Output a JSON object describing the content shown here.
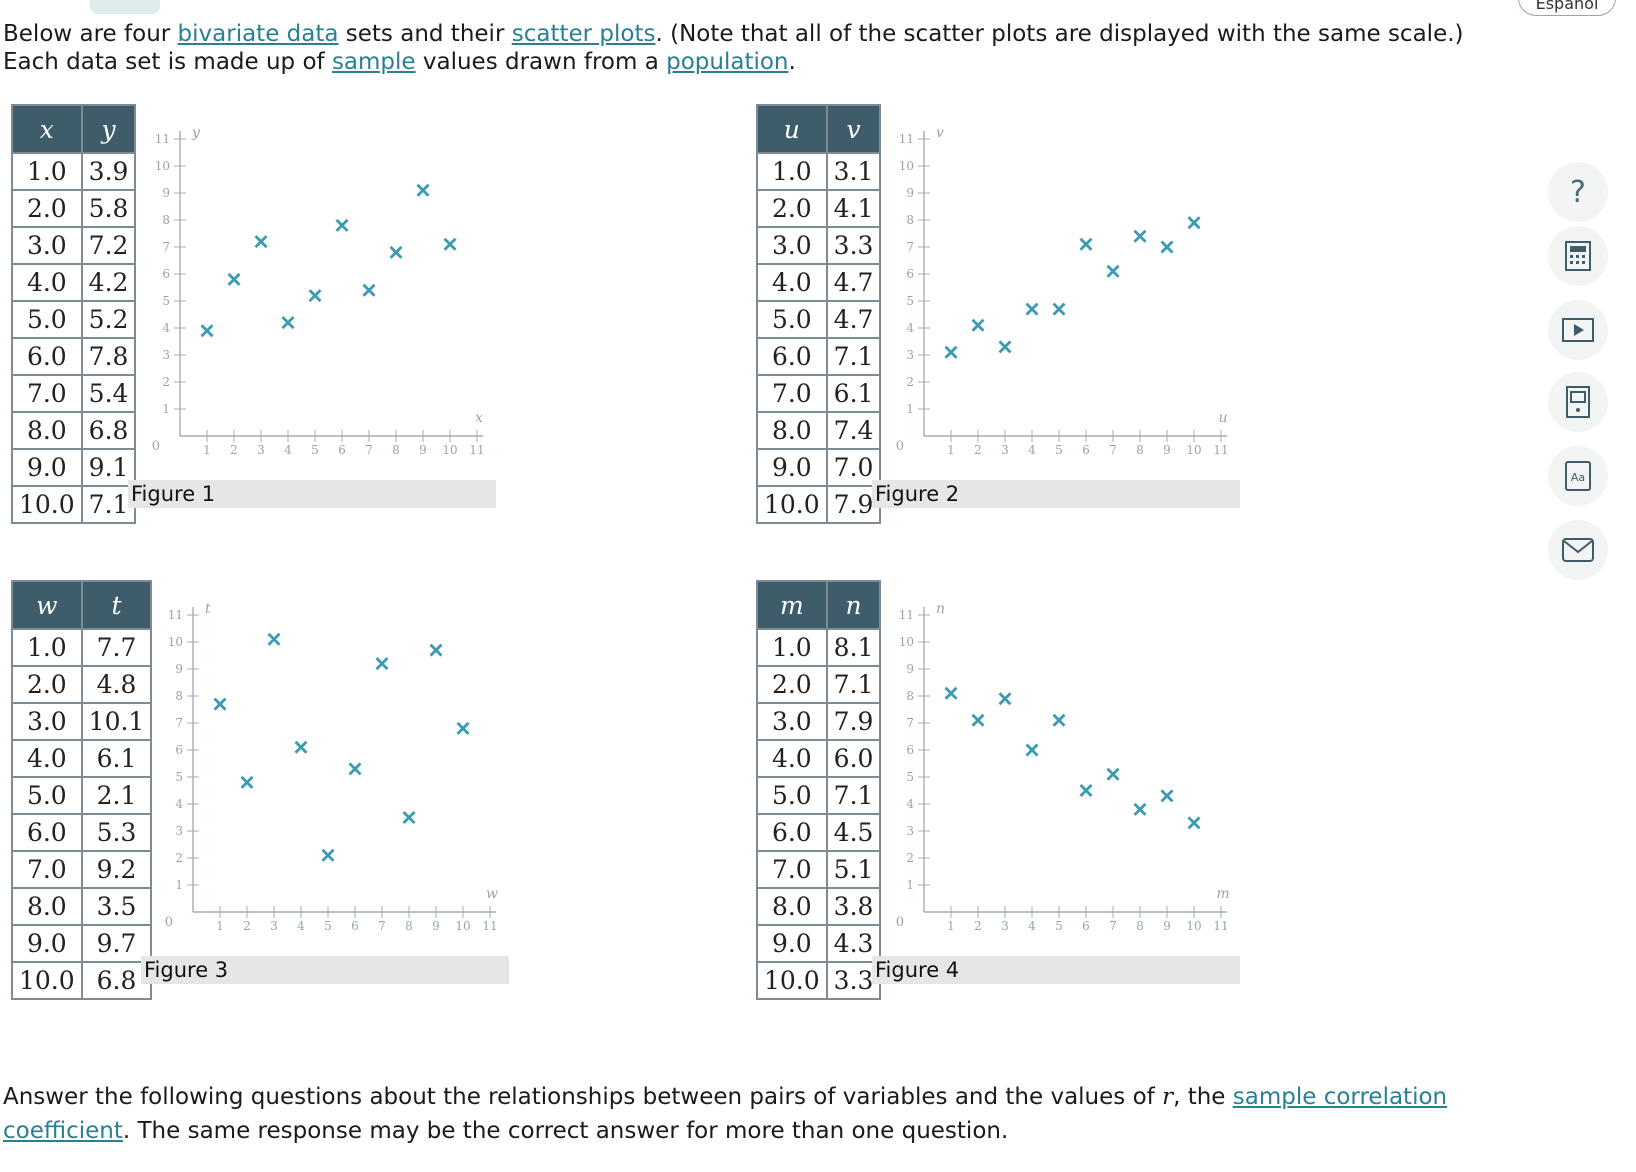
{
  "header": {
    "language_button": "Español"
  },
  "intro": {
    "t1": "Below are four ",
    "link1": "bivariate data",
    "t2": " sets and their ",
    "link2": "scatter plots",
    "t3": ". (Note that all of the scatter plots are displayed with the same scale.) Each data set is made up of ",
    "link3": "sample",
    "t4": " values drawn from a ",
    "link4": "population",
    "t5": "."
  },
  "question": {
    "t1": "Answer the following questions about the relationships between pairs of variables and the values of ",
    "var": "r",
    "t2": ", the ",
    "link1": "sample correlation coefficient",
    "t3": ". The same response may be the correct answer for more than one question."
  },
  "marker_color": "#3b9bb0",
  "datasets": [
    {
      "caption": "Figure 1",
      "col1": "x",
      "col2": "y",
      "rows": [
        [
          "1.0",
          "3.9"
        ],
        [
          "2.0",
          "5.8"
        ],
        [
          "3.0",
          "7.2"
        ],
        [
          "4.0",
          "4.2"
        ],
        [
          "5.0",
          "5.2"
        ],
        [
          "6.0",
          "7.8"
        ],
        [
          "7.0",
          "5.4"
        ],
        [
          "8.0",
          "6.8"
        ],
        [
          "9.0",
          "9.1"
        ],
        [
          "10.0",
          "7.1"
        ]
      ]
    },
    {
      "caption": "Figure 2",
      "col1": "u",
      "col2": "v",
      "rows": [
        [
          "1.0",
          "3.1"
        ],
        [
          "2.0",
          "4.1"
        ],
        [
          "3.0",
          "3.3"
        ],
        [
          "4.0",
          "4.7"
        ],
        [
          "5.0",
          "4.7"
        ],
        [
          "6.0",
          "7.1"
        ],
        [
          "7.0",
          "6.1"
        ],
        [
          "8.0",
          "7.4"
        ],
        [
          "9.0",
          "7.0"
        ],
        [
          "10.0",
          "7.9"
        ]
      ]
    },
    {
      "caption": "Figure 3",
      "col1": "w",
      "col2": "t",
      "rows": [
        [
          "1.0",
          "7.7"
        ],
        [
          "2.0",
          "4.8"
        ],
        [
          "3.0",
          "10.1"
        ],
        [
          "4.0",
          "6.1"
        ],
        [
          "5.0",
          "2.1"
        ],
        [
          "6.0",
          "5.3"
        ],
        [
          "7.0",
          "9.2"
        ],
        [
          "8.0",
          "3.5"
        ],
        [
          "9.0",
          "9.7"
        ],
        [
          "10.0",
          "6.8"
        ]
      ]
    },
    {
      "caption": "Figure 4",
      "col1": "m",
      "col2": "n",
      "rows": [
        [
          "1.0",
          "8.1"
        ],
        [
          "2.0",
          "7.1"
        ],
        [
          "3.0",
          "7.9"
        ],
        [
          "4.0",
          "6.0"
        ],
        [
          "5.0",
          "7.1"
        ],
        [
          "6.0",
          "4.5"
        ],
        [
          "7.0",
          "5.1"
        ],
        [
          "8.0",
          "3.8"
        ],
        [
          "9.0",
          "4.3"
        ],
        [
          "10.0",
          "3.3"
        ]
      ]
    }
  ],
  "chart_data": [
    {
      "type": "scatter",
      "xlabel": "x",
      "ylabel": "y",
      "xlim": [
        0,
        11
      ],
      "ylim": [
        0,
        11
      ],
      "x": [
        1,
        2,
        3,
        4,
        5,
        6,
        7,
        8,
        9,
        10
      ],
      "y": [
        3.9,
        5.8,
        7.2,
        4.2,
        5.2,
        7.8,
        5.4,
        6.8,
        9.1,
        7.1
      ],
      "origin_label": "0",
      "xticks": [
        "1",
        "2",
        "3",
        "4",
        "5",
        "6",
        "7",
        "8",
        "9",
        "10",
        "11"
      ],
      "yticks": [
        "1",
        "2",
        "3",
        "4",
        "5",
        "6",
        "7",
        "8",
        "9",
        "10",
        "11"
      ]
    },
    {
      "type": "scatter",
      "xlabel": "u",
      "ylabel": "v",
      "xlim": [
        0,
        11
      ],
      "ylim": [
        0,
        11
      ],
      "x": [
        1,
        2,
        3,
        4,
        5,
        6,
        7,
        8,
        9,
        10
      ],
      "y": [
        3.1,
        4.1,
        3.3,
        4.7,
        4.7,
        7.1,
        6.1,
        7.4,
        7.0,
        7.9
      ],
      "origin_label": "0",
      "xticks": [
        "1",
        "2",
        "3",
        "4",
        "5",
        "6",
        "7",
        "8",
        "9",
        "10",
        "11"
      ],
      "yticks": [
        "1",
        "2",
        "3",
        "4",
        "5",
        "6",
        "7",
        "8",
        "9",
        "10",
        "11"
      ]
    },
    {
      "type": "scatter",
      "xlabel": "w",
      "ylabel": "t",
      "xlim": [
        0,
        11
      ],
      "ylim": [
        0,
        11
      ],
      "x": [
        1,
        2,
        3,
        4,
        5,
        6,
        7,
        8,
        9,
        10
      ],
      "y": [
        7.7,
        4.8,
        10.1,
        6.1,
        2.1,
        5.3,
        9.2,
        3.5,
        9.7,
        6.8
      ],
      "origin_label": "0",
      "xticks": [
        "1",
        "2",
        "3",
        "4",
        "5",
        "6",
        "7",
        "8",
        "9",
        "10",
        "11"
      ],
      "yticks": [
        "1",
        "2",
        "3",
        "4",
        "5",
        "6",
        "7",
        "8",
        "9",
        "10",
        "11"
      ]
    },
    {
      "type": "scatter",
      "xlabel": "m",
      "ylabel": "n",
      "xlim": [
        0,
        11
      ],
      "ylim": [
        0,
        11
      ],
      "x": [
        1,
        2,
        3,
        4,
        5,
        6,
        7,
        8,
        9,
        10
      ],
      "y": [
        8.1,
        7.1,
        7.9,
        6.0,
        7.1,
        4.5,
        5.1,
        3.8,
        4.3,
        3.3
      ],
      "origin_label": "0",
      "xticks": [
        "1",
        "2",
        "3",
        "4",
        "5",
        "6",
        "7",
        "8",
        "9",
        "10",
        "11"
      ],
      "yticks": [
        "1",
        "2",
        "3",
        "4",
        "5",
        "6",
        "7",
        "8",
        "9",
        "10",
        "11"
      ]
    }
  ],
  "sidebar": [
    {
      "name": "help-icon"
    },
    {
      "name": "calculator-icon"
    },
    {
      "name": "video-icon"
    },
    {
      "name": "ebook-icon"
    },
    {
      "name": "glossary-icon"
    },
    {
      "name": "message-icon"
    }
  ]
}
